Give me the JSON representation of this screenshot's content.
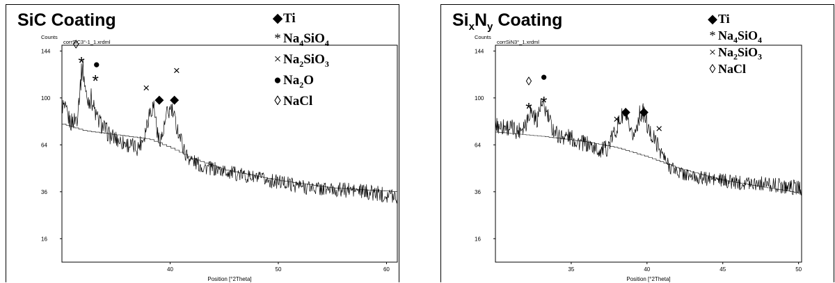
{
  "chart_data": [
    {
      "type": "line",
      "title": "SiC Coating",
      "file_label": "corrSiC3°-1_1.xrdml",
      "xlabel": "Position [°2Theta]",
      "ylabel": "Counts",
      "xlim": [
        30,
        61
      ],
      "ylim": [
        9,
        150
      ],
      "y_scale": "sqrt",
      "xticks": [
        40,
        50,
        60
      ],
      "yticks": [
        16,
        36,
        64,
        100,
        144
      ],
      "series": [
        {
          "role": "pattern",
          "x": [
            30,
            30.8,
            31.4,
            31.9,
            32.3,
            32.7,
            33.2,
            33.8,
            34.5,
            35.3,
            36.2,
            37.0,
            37.6,
            38.1,
            38.5,
            38.9,
            39.3,
            39.7,
            40.1,
            40.5,
            41.0,
            41.4,
            42.0,
            43.0,
            44.5,
            46.0,
            47.5,
            49.0,
            50.5,
            52.0,
            53.5,
            55.0,
            56.5,
            58.0,
            59.5,
            61.0
          ],
          "y": [
            95,
            80,
            84,
            130,
            98,
            100,
            84,
            77,
            70,
            67,
            64,
            62,
            70,
            89,
            94,
            68,
            70,
            86,
            91,
            80,
            68,
            58,
            54,
            50,
            48,
            46,
            44,
            42,
            41,
            39,
            38,
            37,
            37,
            36,
            35,
            34
          ]
        },
        {
          "role": "background",
          "x": [
            30,
            32,
            35,
            38,
            40,
            42,
            45,
            50,
            55,
            61
          ],
          "y": [
            79,
            74,
            71,
            68,
            62,
            55,
            48,
            42,
            38,
            36
          ]
        }
      ],
      "annotations": [
        {
          "symbol": "◊",
          "x": 31.3,
          "y": 150
        },
        {
          "symbol": "*",
          "x": 31.8,
          "y": 131
        },
        {
          "symbol": "●",
          "x": 33.2,
          "y": 130
        },
        {
          "symbol": "*",
          "x": 33.1,
          "y": 114
        },
        {
          "symbol": "×",
          "x": 37.8,
          "y": 108
        },
        {
          "symbol": "◆",
          "x": 39.0,
          "y": 98
        },
        {
          "symbol": "×",
          "x": 40.6,
          "y": 124
        },
        {
          "symbol": "◆",
          "x": 40.4,
          "y": 98
        }
      ],
      "legend": {
        "position": "top-right",
        "entries": [
          {
            "symbol": "◆",
            "base": "Ti",
            "parts": [
              {
                "t": "Ti",
                "s": false
              }
            ]
          },
          {
            "symbol": "*",
            "base": "Na4SiO4",
            "parts": [
              {
                "t": "Na",
                "s": false
              },
              {
                "t": "4",
                "s": true
              },
              {
                "t": "SiO",
                "s": false
              },
              {
                "t": "4",
                "s": true
              }
            ]
          },
          {
            "symbol": "×",
            "base": "Na2SiO3",
            "parts": [
              {
                "t": "Na",
                "s": false
              },
              {
                "t": "2",
                "s": true
              },
              {
                "t": "SiO",
                "s": false
              },
              {
                "t": "3",
                "s": true
              }
            ]
          },
          {
            "symbol": "●",
            "base": "Na2O",
            "parts": [
              {
                "t": "Na",
                "s": false
              },
              {
                "t": "2",
                "s": true
              },
              {
                "t": "O",
                "s": false
              }
            ]
          },
          {
            "symbol": "◊",
            "base": "NaCl",
            "parts": [
              {
                "t": "NaCl",
                "s": false
              }
            ]
          }
        ]
      }
    },
    {
      "type": "line",
      "title": "SixNy Coating",
      "title_parts": [
        {
          "t": "Si",
          "s": false
        },
        {
          "t": "x",
          "s": true
        },
        {
          "t": "N",
          "s": false
        },
        {
          "t": "y",
          "s": true
        },
        {
          "t": " Coating",
          "s": false
        }
      ],
      "file_label": "corrSiN3°_1.xrdml",
      "xlabel": "Position [°2Theta]",
      "ylabel": "Counts",
      "xlim": [
        30,
        50.2
      ],
      "ylim": [
        9,
        150
      ],
      "y_scale": "sqrt",
      "xticks": [
        35,
        40,
        45,
        50
      ],
      "yticks": [
        16,
        36,
        64,
        100,
        144
      ],
      "series": [
        {
          "role": "pattern",
          "x": [
            30,
            30.8,
            31.5,
            32.0,
            32.3,
            32.7,
            33.0,
            33.3,
            33.7,
            34.2,
            34.8,
            35.5,
            36.2,
            36.8,
            37.4,
            37.9,
            38.3,
            38.6,
            38.9,
            39.2,
            39.5,
            39.8,
            40.1,
            40.5,
            40.9,
            41.3,
            42.0,
            43.0,
            44.0,
            45.0,
            46.0,
            47.0,
            48.0,
            49.0,
            50.2
          ],
          "y": [
            78,
            77,
            74,
            80,
            90,
            82,
            93,
            90,
            77,
            70,
            70,
            66,
            64,
            60,
            62,
            74,
            84,
            86,
            70,
            72,
            86,
            88,
            74,
            68,
            60,
            52,
            47,
            44,
            43,
            42,
            41,
            41,
            40,
            39,
            38
          ]
        },
        {
          "role": "background",
          "x": [
            30,
            33,
            36,
            38,
            40,
            42,
            45,
            48,
            50.2
          ],
          "y": [
            73,
            70,
            66,
            62,
            56,
            49,
            42,
            38,
            35
          ]
        }
      ],
      "annotations": [
        {
          "symbol": "◊",
          "x": 32.2,
          "y": 114
        },
        {
          "symbol": "*",
          "x": 32.2,
          "y": 90
        },
        {
          "symbol": "*",
          "x": 33.2,
          "y": 95
        },
        {
          "symbol": "●",
          "x": 33.2,
          "y": 118
        },
        {
          "symbol": "×",
          "x": 38.0,
          "y": 82
        },
        {
          "symbol": "◆",
          "x": 38.6,
          "y": 88
        },
        {
          "symbol": "◆",
          "x": 39.8,
          "y": 88
        },
        {
          "symbol": "×",
          "x": 40.8,
          "y": 75
        }
      ],
      "legend": {
        "position": "top-right",
        "entries": [
          {
            "symbol": "◆",
            "base": "Ti",
            "parts": [
              {
                "t": "Ti",
                "s": false
              }
            ]
          },
          {
            "symbol": "*",
            "base": "Na4SiO4",
            "parts": [
              {
                "t": "Na",
                "s": false
              },
              {
                "t": "4",
                "s": true
              },
              {
                "t": "SiO",
                "s": false
              },
              {
                "t": "4",
                "s": true
              }
            ]
          },
          {
            "symbol": "×",
            "base": "Na2SiO3",
            "parts": [
              {
                "t": "Na",
                "s": false
              },
              {
                "t": "2",
                "s": true
              },
              {
                "t": "SiO",
                "s": false
              },
              {
                "t": "3",
                "s": true
              }
            ]
          },
          {
            "symbol": "◊",
            "base": "NaCl",
            "parts": [
              {
                "t": "NaCl",
                "s": false
              }
            ]
          }
        ]
      }
    }
  ],
  "style": {
    "line_color": "#000000",
    "background_color": "#ffffff"
  }
}
